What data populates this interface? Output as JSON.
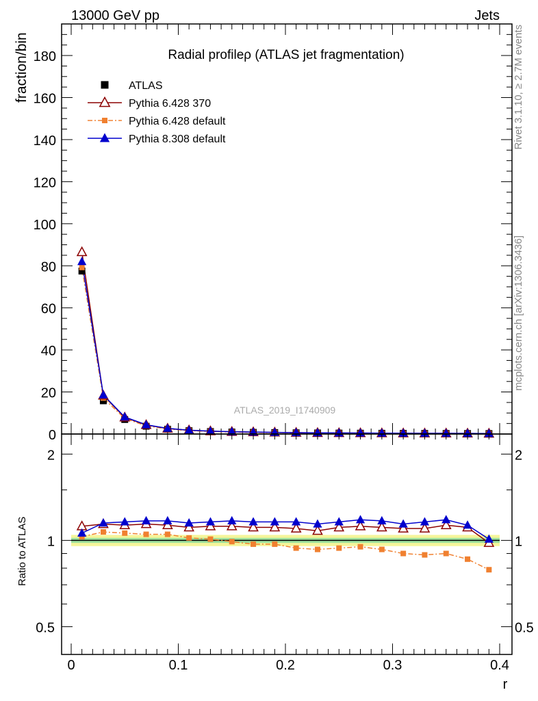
{
  "header": {
    "energy_label": "13000 GeV pp",
    "process_label": "Jets"
  },
  "side_labels": {
    "rivet": "Rivet 3.1.10, ≥ 2.7M events",
    "mcplots": "mcplots.cern.ch [arXiv:1306.3436]"
  },
  "chart_data": [
    {
      "type": "scatter",
      "title": "Radial profileρ (ATLAS jet fragmentation)",
      "analysis_id": "ATLAS_2019_I1740909",
      "xlabel": "r",
      "ylabel": "fraction/bin",
      "xlim": [
        0,
        0.4
      ],
      "ylim": [
        0,
        195
      ],
      "yticks": [
        0,
        20,
        40,
        60,
        80,
        100,
        120,
        140,
        160,
        180
      ],
      "legend_position": "top-left",
      "x": [
        0.01,
        0.03,
        0.05,
        0.07,
        0.09,
        0.11,
        0.13,
        0.15,
        0.17,
        0.19,
        0.21,
        0.23,
        0.25,
        0.27,
        0.29,
        0.31,
        0.33,
        0.35,
        0.37,
        0.39
      ],
      "series": [
        {
          "name": "ATLAS",
          "color": "#000000",
          "marker": "square",
          "values": [
            77.5,
            15.8,
            6.9,
            3.7,
            2.3,
            1.6,
            1.2,
            0.95,
            0.8,
            0.68,
            0.58,
            0.5,
            0.44,
            0.39,
            0.35,
            0.32,
            0.29,
            0.27,
            0.25,
            0.23
          ]
        },
        {
          "name": "Pythia 6.428 370",
          "color": "#8b0000",
          "marker": "open-triangle",
          "values": [
            86.5,
            18.3,
            7.9,
            4.3,
            2.6,
            1.8,
            1.35,
            1.07,
            0.9,
            0.76,
            0.64,
            0.54,
            0.49,
            0.44,
            0.39,
            0.35,
            0.32,
            0.31,
            0.28,
            0.22
          ]
        },
        {
          "name": "Pythia 6.428 default",
          "color": "#f08030",
          "marker": "square",
          "values": [
            79.2,
            17.1,
            7.4,
            3.9,
            2.4,
            1.65,
            1.22,
            0.94,
            0.78,
            0.66,
            0.55,
            0.47,
            0.42,
            0.37,
            0.33,
            0.29,
            0.26,
            0.24,
            0.22,
            0.18
          ]
        },
        {
          "name": "Pythia 8.308 default",
          "color": "#0000cd",
          "marker": "triangle",
          "values": [
            82.0,
            18.6,
            8.1,
            4.4,
            2.7,
            1.85,
            1.38,
            1.1,
            0.93,
            0.79,
            0.67,
            0.57,
            0.51,
            0.47,
            0.41,
            0.37,
            0.34,
            0.32,
            0.29,
            0.23
          ]
        }
      ]
    },
    {
      "type": "line",
      "ylabel": "Ratio to ATLAS",
      "xlabel": "r",
      "xlim": [
        0,
        0.4
      ],
      "ylim": [
        0.4,
        2.35
      ],
      "yscale": "log",
      "yticks": [
        0.5,
        1,
        2
      ],
      "ytick_labels": [
        "0.5",
        "1",
        "2"
      ],
      "xticks": [
        0,
        0.1,
        0.2,
        0.3,
        0.4
      ],
      "xtick_labels": [
        "0",
        "0.1",
        "0.2",
        "0.3",
        "0.4"
      ],
      "band_inner": 0.02,
      "band_outer": 0.045,
      "x": [
        0.01,
        0.03,
        0.05,
        0.07,
        0.09,
        0.11,
        0.13,
        0.15,
        0.17,
        0.19,
        0.21,
        0.23,
        0.25,
        0.27,
        0.29,
        0.31,
        0.33,
        0.35,
        0.37,
        0.39
      ],
      "series": [
        {
          "name": "Pythia 6.428 370",
          "color": "#8b0000",
          "marker": "open-triangle",
          "values": [
            1.12,
            1.14,
            1.13,
            1.14,
            1.13,
            1.11,
            1.12,
            1.12,
            1.11,
            1.11,
            1.1,
            1.08,
            1.11,
            1.12,
            1.11,
            1.1,
            1.1,
            1.13,
            1.11,
            0.98
          ]
        },
        {
          "name": "Pythia 6.428 default",
          "color": "#f08030",
          "marker": "square",
          "values": [
            1.03,
            1.07,
            1.06,
            1.05,
            1.05,
            1.02,
            1.01,
            0.99,
            0.97,
            0.97,
            0.94,
            0.93,
            0.94,
            0.95,
            0.93,
            0.9,
            0.89,
            0.9,
            0.86,
            0.79
          ]
        },
        {
          "name": "Pythia 8.308 default",
          "color": "#0000cd",
          "marker": "triangle",
          "values": [
            1.06,
            1.15,
            1.16,
            1.17,
            1.17,
            1.15,
            1.16,
            1.17,
            1.16,
            1.16,
            1.16,
            1.14,
            1.16,
            1.18,
            1.17,
            1.14,
            1.16,
            1.18,
            1.13,
            1.01
          ]
        }
      ]
    }
  ]
}
